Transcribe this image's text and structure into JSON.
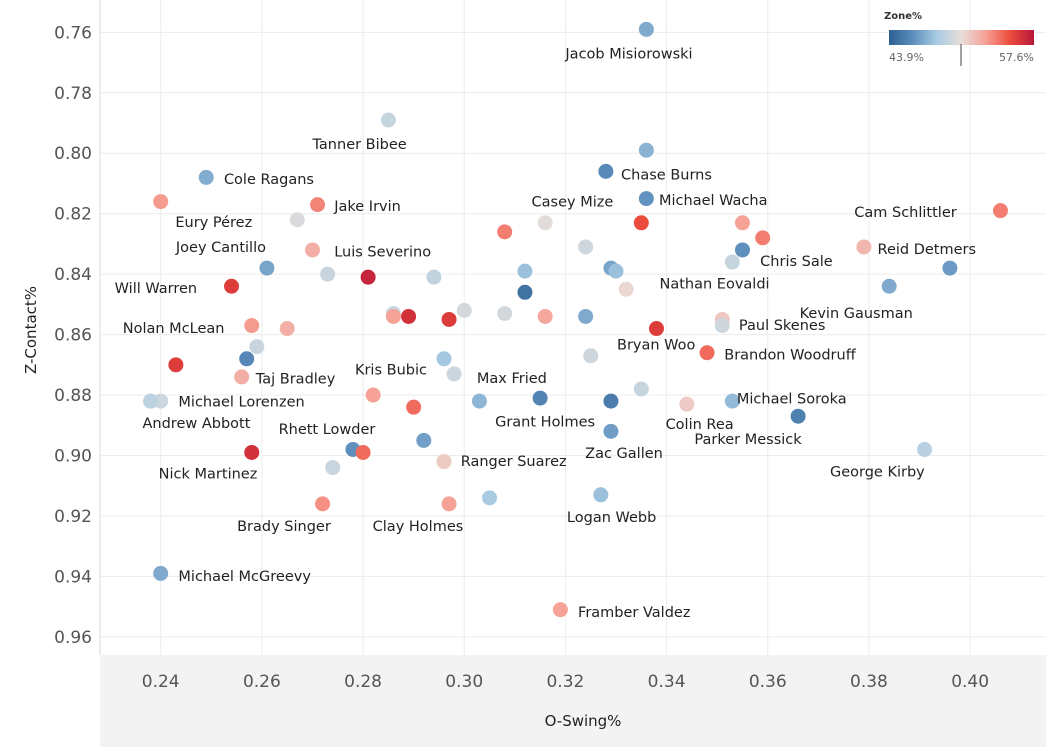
{
  "chart_data": {
    "type": "scatter",
    "xlabel": "O-Swing%",
    "ylabel": "Z-Contact%",
    "xlim": [
      0.228,
      0.415
    ],
    "ylim": [
      0.7493,
      0.966
    ],
    "y_reversed": true,
    "grid": true,
    "x_ticks": [
      "0.24",
      "0.26",
      "0.28",
      "0.30",
      "0.32",
      "0.34",
      "0.36",
      "0.38",
      "0.40"
    ],
    "y_ticks": [
      "0.76",
      "0.78",
      "0.80",
      "0.82",
      "0.84",
      "0.86",
      "0.88",
      "0.90",
      "0.92",
      "0.94",
      "0.96"
    ],
    "legend": {
      "title": "Zone%",
      "min_label": "43.9%",
      "max_label": "57.6%",
      "min": 0.439,
      "max": 0.576,
      "placement": "top-right",
      "colors": [
        "#2c5f91",
        "#5e8fbd",
        "#a9cce3",
        "#e8ded9",
        "#f6a196",
        "#ec4d3c",
        "#b7173a"
      ]
    },
    "points": [
      {
        "label": "Jacob Misiorowski",
        "x": 0.336,
        "y": 0.759,
        "zone": 0.472,
        "lx": 0.32,
        "ly": 0.767
      },
      {
        "label": "Tanner Bibee",
        "x": 0.285,
        "y": 0.789,
        "zone": 0.495,
        "lx": 0.27,
        "ly": 0.797
      },
      {
        "label": "",
        "x": 0.336,
        "y": 0.799,
        "zone": 0.475,
        "lx": 0,
        "ly": 0
      },
      {
        "label": "Chase Burns",
        "x": 0.328,
        "y": 0.806,
        "zone": 0.459,
        "lx": 0.331,
        "ly": 0.807
      },
      {
        "label": "Cole Ragans",
        "x": 0.249,
        "y": 0.808,
        "zone": 0.473,
        "lx": 0.2525,
        "ly": 0.8085
      },
      {
        "label": "Michael Wacha",
        "x": 0.336,
        "y": 0.815,
        "zone": 0.463,
        "lx": 0.3385,
        "ly": 0.8155
      },
      {
        "label": "Casey Mize",
        "x": 0.335,
        "y": 0.823,
        "zone": 0.554,
        "lx": 0.3133,
        "ly": 0.8159
      },
      {
        "label": "",
        "x": 0.24,
        "y": 0.816,
        "zone": 0.532,
        "lx": 0,
        "ly": 0
      },
      {
        "label": "Jake Irvin",
        "x": 0.271,
        "y": 0.817,
        "zone": 0.538,
        "lx": 0.2743,
        "ly": 0.8175
      },
      {
        "label": "Eury Pérez",
        "x": 0.267,
        "y": 0.822,
        "zone": 0.502,
        "lx": 0.2429,
        "ly": 0.8228
      },
      {
        "label": "Cam Schlittler",
        "x": 0.406,
        "y": 0.819,
        "zone": 0.54,
        "lx": 0.3771,
        "ly": 0.8195
      },
      {
        "label": "",
        "x": 0.308,
        "y": 0.826,
        "zone": 0.54,
        "lx": 0,
        "ly": 0
      },
      {
        "label": "",
        "x": 0.316,
        "y": 0.823,
        "zone": 0.505,
        "lx": 0,
        "ly": 0
      },
      {
        "label": "",
        "x": 0.355,
        "y": 0.823,
        "zone": 0.53,
        "lx": 0,
        "ly": 0
      },
      {
        "label": "",
        "x": 0.359,
        "y": 0.828,
        "zone": 0.54,
        "lx": 0,
        "ly": 0
      },
      {
        "label": "",
        "x": 0.324,
        "y": 0.831,
        "zone": 0.498,
        "lx": 0,
        "ly": 0
      },
      {
        "label": "Chris Sale",
        "x": 0.355,
        "y": 0.832,
        "zone": 0.462,
        "lx": 0.3585,
        "ly": 0.8356
      },
      {
        "label": "Reid Detmers",
        "x": 0.379,
        "y": 0.831,
        "zone": 0.522,
        "lx": 0.3817,
        "ly": 0.8316
      },
      {
        "label": "Joey Cantillo",
        "x": 0.261,
        "y": 0.838,
        "zone": 0.47,
        "lx": 0.243,
        "ly": 0.831
      },
      {
        "label": "Luis Severino",
        "x": 0.27,
        "y": 0.832,
        "zone": 0.525,
        "lx": 0.2743,
        "ly": 0.8325
      },
      {
        "label": "",
        "x": 0.273,
        "y": 0.84,
        "zone": 0.496,
        "lx": 0,
        "ly": 0
      },
      {
        "label": "",
        "x": 0.281,
        "y": 0.841,
        "zone": 0.57,
        "lx": 0,
        "ly": 0
      },
      {
        "label": "",
        "x": 0.294,
        "y": 0.841,
        "zone": 0.493,
        "lx": 0,
        "ly": 0
      },
      {
        "label": "",
        "x": 0.312,
        "y": 0.839,
        "zone": 0.48,
        "lx": 0,
        "ly": 0
      },
      {
        "label": "",
        "x": 0.312,
        "y": 0.846,
        "zone": 0.448,
        "lx": 0,
        "ly": 0
      },
      {
        "label": "",
        "x": 0.329,
        "y": 0.838,
        "zone": 0.47,
        "lx": 0,
        "ly": 0
      },
      {
        "label": "",
        "x": 0.33,
        "y": 0.839,
        "zone": 0.48,
        "lx": 0,
        "ly": 0
      },
      {
        "label": "",
        "x": 0.332,
        "y": 0.845,
        "zone": 0.51,
        "lx": 0,
        "ly": 0
      },
      {
        "label": "Nathan Eovaldi",
        "x": 0.353,
        "y": 0.836,
        "zone": 0.495,
        "lx": 0.3386,
        "ly": 0.8431
      },
      {
        "label": "Kevin Gausman",
        "x": 0.384,
        "y": 0.844,
        "zone": 0.472,
        "lx": 0.3663,
        "ly": 0.8528
      },
      {
        "label": "",
        "x": 0.396,
        "y": 0.838,
        "zone": 0.466,
        "lx": 0,
        "ly": 0
      },
      {
        "label": "Will Warren",
        "x": 0.254,
        "y": 0.844,
        "zone": 0.56,
        "lx": 0.2309,
        "ly": 0.8445
      },
      {
        "label": "",
        "x": 0.286,
        "y": 0.853,
        "zone": 0.496,
        "lx": 0,
        "ly": 0
      },
      {
        "label": "",
        "x": 0.286,
        "y": 0.854,
        "zone": 0.53,
        "lx": 0,
        "ly": 0
      },
      {
        "label": "",
        "x": 0.289,
        "y": 0.854,
        "zone": 0.565,
        "lx": 0,
        "ly": 0
      },
      {
        "label": "",
        "x": 0.297,
        "y": 0.855,
        "zone": 0.56,
        "lx": 0,
        "ly": 0
      },
      {
        "label": "",
        "x": 0.3,
        "y": 0.852,
        "zone": 0.5,
        "lx": 0,
        "ly": 0
      },
      {
        "label": "",
        "x": 0.308,
        "y": 0.853,
        "zone": 0.5,
        "lx": 0,
        "ly": 0
      },
      {
        "label": "",
        "x": 0.316,
        "y": 0.854,
        "zone": 0.528,
        "lx": 0,
        "ly": 0
      },
      {
        "label": "",
        "x": 0.324,
        "y": 0.854,
        "zone": 0.472,
        "lx": 0,
        "ly": 0
      },
      {
        "label": "",
        "x": 0.338,
        "y": 0.858,
        "zone": 0.56,
        "lx": 0,
        "ly": 0
      },
      {
        "label": "",
        "x": 0.351,
        "y": 0.855,
        "zone": 0.516,
        "lx": 0,
        "ly": 0
      },
      {
        "label": "Paul Skenes",
        "x": 0.351,
        "y": 0.857,
        "zone": 0.498,
        "lx": 0.3543,
        "ly": 0.8569
      },
      {
        "label": "Nolan McLean",
        "x": 0.258,
        "y": 0.857,
        "zone": 0.532,
        "lx": 0.2325,
        "ly": 0.8578
      },
      {
        "label": "",
        "x": 0.265,
        "y": 0.858,
        "zone": 0.525,
        "lx": 0,
        "ly": 0
      },
      {
        "label": "",
        "x": 0.259,
        "y": 0.864,
        "zone": 0.496,
        "lx": 0,
        "ly": 0
      },
      {
        "label": "Bryan Woo",
        "x": 0.325,
        "y": 0.867,
        "zone": 0.498,
        "lx": 0.3302,
        "ly": 0.8632
      },
      {
        "label": "Brandon Woodruff",
        "x": 0.348,
        "y": 0.866,
        "zone": 0.545,
        "lx": 0.3514,
        "ly": 0.8665
      },
      {
        "label": "Kris Bubic",
        "x": 0.296,
        "y": 0.868,
        "zone": 0.483,
        "lx": 0.2784,
        "ly": 0.8715
      },
      {
        "label": "Max Fried",
        "x": 0.298,
        "y": 0.873,
        "zone": 0.497,
        "lx": 0.3025,
        "ly": 0.8744
      },
      {
        "label": "Taj Bradley",
        "x": 0.257,
        "y": 0.868,
        "zone": 0.458,
        "lx": 0.2588,
        "ly": 0.8745
      },
      {
        "label": "",
        "x": 0.243,
        "y": 0.87,
        "zone": 0.56,
        "lx": 0,
        "ly": 0
      },
      {
        "label": "",
        "x": 0.256,
        "y": 0.874,
        "zone": 0.525,
        "lx": 0,
        "ly": 0
      },
      {
        "label": "Michael Soroka",
        "x": 0.335,
        "y": 0.878,
        "zone": 0.495,
        "lx": 0.3539,
        "ly": 0.8812
      },
      {
        "label": "",
        "x": 0.282,
        "y": 0.88,
        "zone": 0.53,
        "lx": 0,
        "ly": 0
      },
      {
        "label": "Michael Lorenzen",
        "x": 0.24,
        "y": 0.882,
        "zone": 0.497,
        "lx": 0.2435,
        "ly": 0.8822
      },
      {
        "label": "",
        "x": 0.238,
        "y": 0.882,
        "zone": 0.492,
        "lx": 0,
        "ly": 0
      },
      {
        "label": "",
        "x": 0.29,
        "y": 0.884,
        "zone": 0.545,
        "lx": 0,
        "ly": 0
      },
      {
        "label": "",
        "x": 0.303,
        "y": 0.882,
        "zone": 0.476,
        "lx": 0,
        "ly": 0
      },
      {
        "label": "Grant Holmes",
        "x": 0.315,
        "y": 0.881,
        "zone": 0.457,
        "lx": 0.3061,
        "ly": 0.8888
      },
      {
        "label": "",
        "x": 0.329,
        "y": 0.882,
        "zone": 0.453,
        "lx": 0,
        "ly": 0
      },
      {
        "label": "Colin Rea",
        "x": 0.344,
        "y": 0.883,
        "zone": 0.515,
        "lx": 0.3398,
        "ly": 0.8896
      },
      {
        "label": "",
        "x": 0.353,
        "y": 0.882,
        "zone": 0.478,
        "lx": 0,
        "ly": 0
      },
      {
        "label": "Andrew Abbott",
        "x": 0.238,
        "y": 0.882,
        "zone": 0.492,
        "lx": 0.2364,
        "ly": 0.8892
      },
      {
        "label": "Parker Messick",
        "x": 0.366,
        "y": 0.887,
        "zone": 0.455,
        "lx": 0.3455,
        "ly": 0.8945
      },
      {
        "label": "Rhett Lowder",
        "x": 0.278,
        "y": 0.898,
        "zone": 0.462,
        "lx": 0.2633,
        "ly": 0.8912
      },
      {
        "label": "",
        "x": 0.292,
        "y": 0.895,
        "zone": 0.468,
        "lx": 0,
        "ly": 0
      },
      {
        "label": "Zac Gallen",
        "x": 0.329,
        "y": 0.892,
        "zone": 0.467,
        "lx": 0.3239,
        "ly": 0.8992
      },
      {
        "label": "Nick Martinez",
        "x": 0.258,
        "y": 0.899,
        "zone": 0.565,
        "lx": 0.2396,
        "ly": 0.9059
      },
      {
        "label": "",
        "x": 0.28,
        "y": 0.899,
        "zone": 0.545,
        "lx": 0,
        "ly": 0
      },
      {
        "label": "Ranger Suarez",
        "x": 0.296,
        "y": 0.902,
        "zone": 0.515,
        "lx": 0.2993,
        "ly": 0.9018
      },
      {
        "label": "George Kirby",
        "x": 0.391,
        "y": 0.898,
        "zone": 0.49,
        "lx": 0.3723,
        "ly": 0.9053
      },
      {
        "label": "",
        "x": 0.274,
        "y": 0.904,
        "zone": 0.496,
        "lx": 0,
        "ly": 0
      },
      {
        "label": "Logan Webb",
        "x": 0.327,
        "y": 0.913,
        "zone": 0.48,
        "lx": 0.3203,
        "ly": 0.9204
      },
      {
        "label": "Brady Singer",
        "x": 0.272,
        "y": 0.916,
        "zone": 0.535,
        "lx": 0.2551,
        "ly": 0.9234
      },
      {
        "label": "Clay Holmes",
        "x": 0.297,
        "y": 0.916,
        "zone": 0.53,
        "lx": 0.2819,
        "ly": 0.9234
      },
      {
        "label": "",
        "x": 0.305,
        "y": 0.914,
        "zone": 0.485,
        "lx": 0,
        "ly": 0
      },
      {
        "label": "Michael McGreevy",
        "x": 0.24,
        "y": 0.939,
        "zone": 0.472,
        "lx": 0.2435,
        "ly": 0.9399
      },
      {
        "label": "Framber Valdez",
        "x": 0.319,
        "y": 0.951,
        "zone": 0.53,
        "lx": 0.3225,
        "ly": 0.9518
      }
    ]
  }
}
